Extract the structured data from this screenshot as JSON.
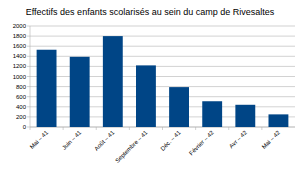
{
  "chart_data": {
    "type": "bar",
    "title": "Effectifs des enfants scolarisés au sein du camp de Rivesaltes",
    "categories": [
      "Mai – 41",
      "Juin – 41",
      "Août – 41",
      "Septembre – 41",
      "Déc. – 41",
      "Février – 42",
      "Avr – 42",
      "Mai – 42"
    ],
    "values": [
      1530,
      1390,
      1800,
      1220,
      790,
      510,
      440,
      250
    ],
    "color": "#004586",
    "ylim": [
      0,
      2000
    ],
    "yticks": [
      0,
      200,
      400,
      600,
      800,
      1000,
      1200,
      1400,
      1600,
      1800,
      2000
    ],
    "grid": true
  }
}
